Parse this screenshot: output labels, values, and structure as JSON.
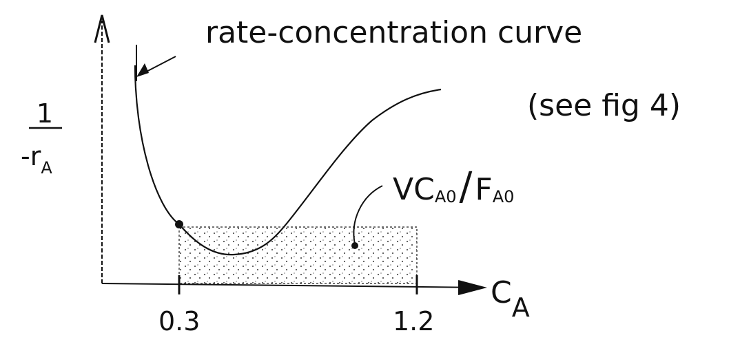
{
  "annotation": {
    "title": "rate-concentration curve",
    "note": "(see fig 4)"
  },
  "y_axis": {
    "numerator": "1",
    "denominator": "-r",
    "denominator_subscript": "A"
  },
  "x_axis": {
    "label": "C",
    "label_subscript": "A",
    "ticks": [
      "0.3",
      "1.2"
    ]
  },
  "area_label": {
    "v": "V",
    "c": "C",
    "c_subscript": "A0",
    "slash": "/",
    "f": "F",
    "f_subscript": "A0"
  }
}
